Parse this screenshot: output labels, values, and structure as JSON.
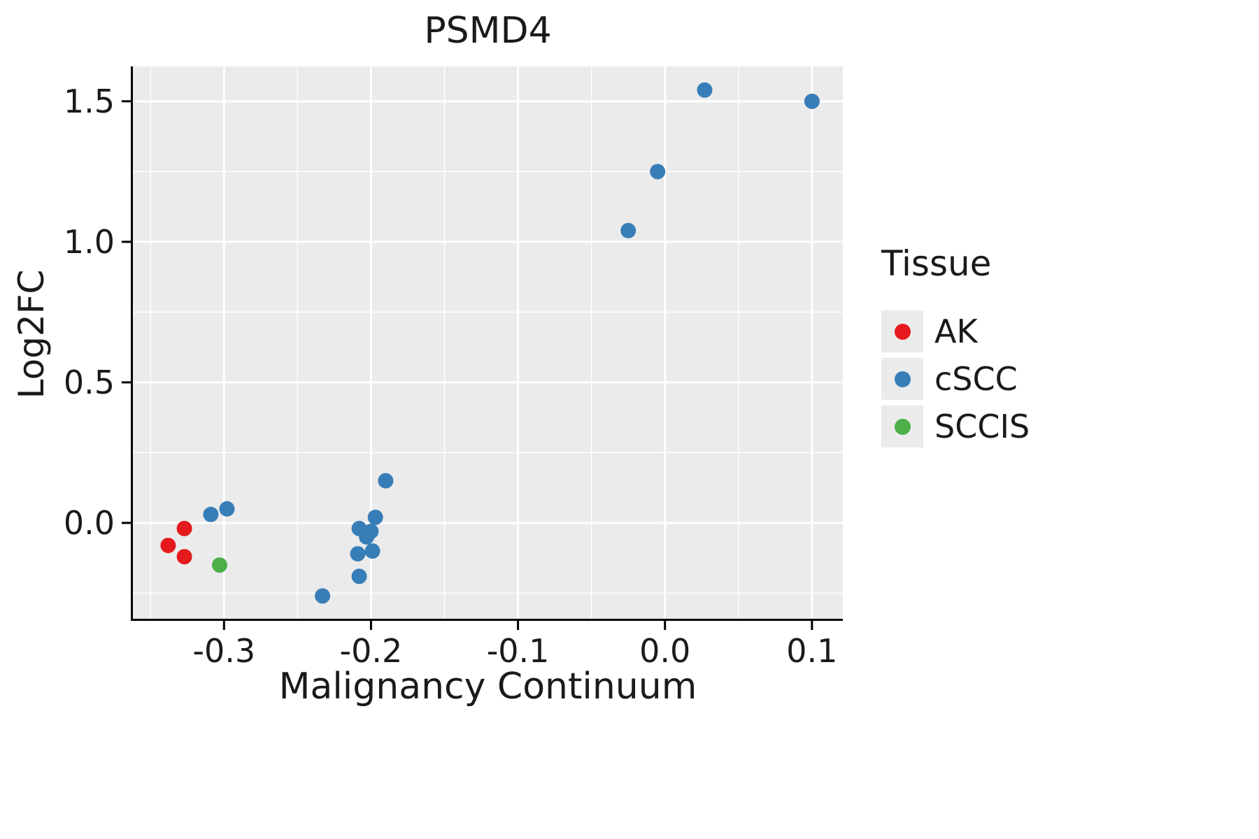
{
  "chart_data": {
    "type": "scatter",
    "title": "PSMD4",
    "xlabel": "Malignancy Continuum",
    "ylabel": "Log2FC",
    "xlim": [
      -0.362,
      0.121
    ],
    "ylim": [
      -0.341,
      1.624
    ],
    "x_major_ticks": [
      -0.3,
      -0.2,
      -0.1,
      0.0,
      0.1
    ],
    "x_tick_labels": [
      "-0.3",
      "-0.2",
      "-0.1",
      "0.0",
      "0.1"
    ],
    "x_minor_ticks": [
      -0.35,
      -0.25,
      -0.15,
      -0.05,
      0.05
    ],
    "y_major_ticks": [
      0.0,
      0.5,
      1.0,
      1.5
    ],
    "y_tick_labels": [
      "0.0",
      "0.5",
      "1.0",
      "1.5"
    ],
    "y_minor_ticks": [
      -0.25,
      0.25,
      0.75,
      1.25
    ],
    "panel_background": "#EBEBEB",
    "grid_color": "#FFFFFF",
    "axis_color": "#000000",
    "point_radius": 11,
    "legend": {
      "title": "Tissue",
      "position": "right",
      "entries": [
        {
          "label": "AK",
          "color": "#E41A1C"
        },
        {
          "label": "cSCC",
          "color": "#377EB8"
        },
        {
          "label": "SCCIS",
          "color": "#4DAF4A"
        }
      ]
    },
    "series": [
      {
        "name": "AK",
        "color": "#E41A1C",
        "points": [
          [
            -0.327,
            -0.02
          ],
          [
            -0.338,
            -0.08
          ],
          [
            -0.327,
            -0.12
          ]
        ]
      },
      {
        "name": "cSCC",
        "color": "#377EB8",
        "points": [
          [
            0.027,
            1.54
          ],
          [
            0.1,
            1.5
          ],
          [
            -0.005,
            1.25
          ],
          [
            -0.025,
            1.04
          ],
          [
            -0.19,
            0.15
          ],
          [
            -0.298,
            0.05
          ],
          [
            -0.309,
            0.03
          ],
          [
            -0.197,
            0.02
          ],
          [
            -0.208,
            -0.02
          ],
          [
            -0.2,
            -0.03
          ],
          [
            -0.203,
            -0.05
          ],
          [
            -0.209,
            -0.11
          ],
          [
            -0.199,
            -0.1
          ],
          [
            -0.208,
            -0.19
          ],
          [
            -0.233,
            -0.26
          ]
        ]
      },
      {
        "name": "SCCIS",
        "color": "#4DAF4A",
        "points": [
          [
            -0.303,
            -0.15
          ]
        ]
      }
    ]
  }
}
